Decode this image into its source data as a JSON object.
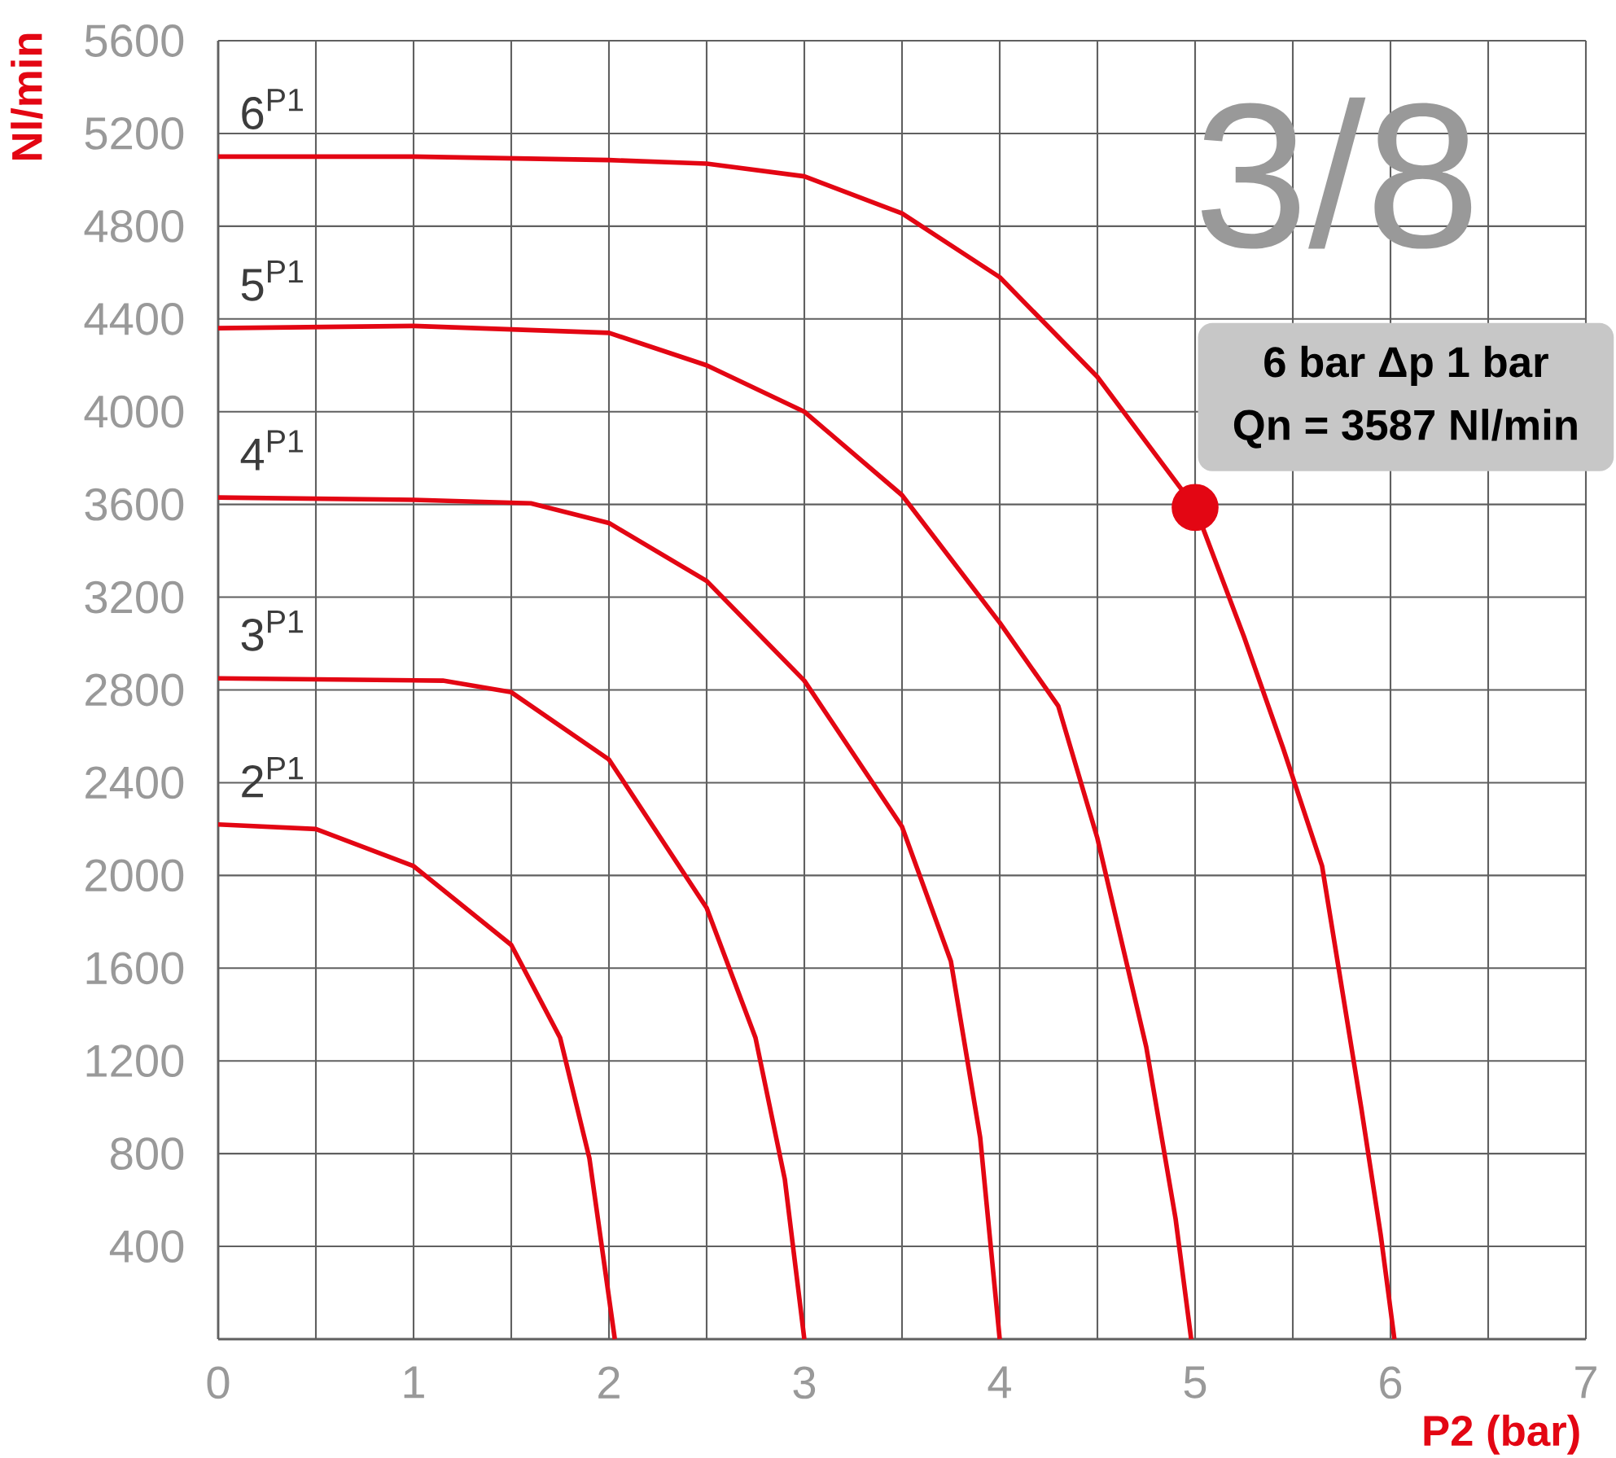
{
  "chart_data": {
    "type": "line",
    "title": "3/8",
    "xlabel": "P2 (bar)",
    "ylabel": "Nl/min",
    "xlim": [
      0,
      7
    ],
    "ylim": [
      0,
      5600
    ],
    "xticks": [
      0,
      {
        "value": 0.5,
        "label": null
      },
      1,
      {
        "value": 1.5,
        "label": null
      },
      2,
      {
        "value": 2.5,
        "label": null
      },
      3,
      {
        "value": 3.5,
        "label": null
      },
      4,
      {
        "value": 4.5,
        "label": null
      },
      5,
      {
        "value": 5.5,
        "label": null
      },
      6,
      {
        "value": 6.5,
        "label": null
      },
      7
    ],
    "yticks": [
      400,
      800,
      1200,
      1600,
      2000,
      2400,
      2800,
      3200,
      3600,
      4000,
      4400,
      4800,
      5200,
      5600
    ],
    "grid": true,
    "series": [
      {
        "name": "2$^{P1}$",
        "color": "#e30613",
        "x": [
          0,
          0.5,
          1,
          1.5,
          1.75,
          1.9,
          2.03
        ],
        "values": [
          2220,
          2200,
          2040,
          1700,
          1300,
          780,
          0
        ]
      },
      {
        "name": "3$^{P1}$",
        "color": "#e30613",
        "x": [
          0,
          1.15,
          1.5,
          2,
          2.5,
          2.75,
          2.9,
          3.0
        ],
        "values": [
          2850,
          2840,
          2790,
          2500,
          1860,
          1300,
          690,
          0
        ]
      },
      {
        "name": "4$^{P1}$",
        "color": "#e30613",
        "x": [
          0,
          1,
          1.6,
          2,
          2.5,
          3,
          3.5,
          3.75,
          3.9,
          4.0
        ],
        "values": [
          3630,
          3620,
          3605,
          3520,
          3270,
          2840,
          2210,
          1630,
          870,
          0
        ]
      },
      {
        "name": "5$^{P1}$",
        "color": "#e30613",
        "x": [
          0,
          1,
          2,
          2.5,
          3,
          3.5,
          4,
          4.3,
          4.5,
          4.75,
          4.9,
          4.98
        ],
        "values": [
          4360,
          4370,
          4340,
          4200,
          4000,
          3640,
          3090,
          2730,
          2160,
          1260,
          520,
          0
        ]
      },
      {
        "name": "6$^{P1}$",
        "color": "#e30613",
        "x": [
          0,
          1,
          2,
          2.5,
          3,
          3.5,
          4,
          4.5,
          5,
          5.25,
          5.45,
          5.65,
          5.85,
          5.95,
          6.02
        ],
        "values": [
          5100,
          5100,
          5085,
          5070,
          5015,
          4855,
          4580,
          4150,
          3587,
          3030,
          2550,
          2040,
          1000,
          450,
          0
        ]
      },
      {
        "type": "scatter",
        "marker": "circle",
        "color": "#e30613",
        "x": [
          5
        ],
        "values": [
          3587
        ]
      }
    ],
    "annotations": [
      "6 bar Δp 1 bar",
      "Qn = 3587 Nl/min"
    ]
  }
}
